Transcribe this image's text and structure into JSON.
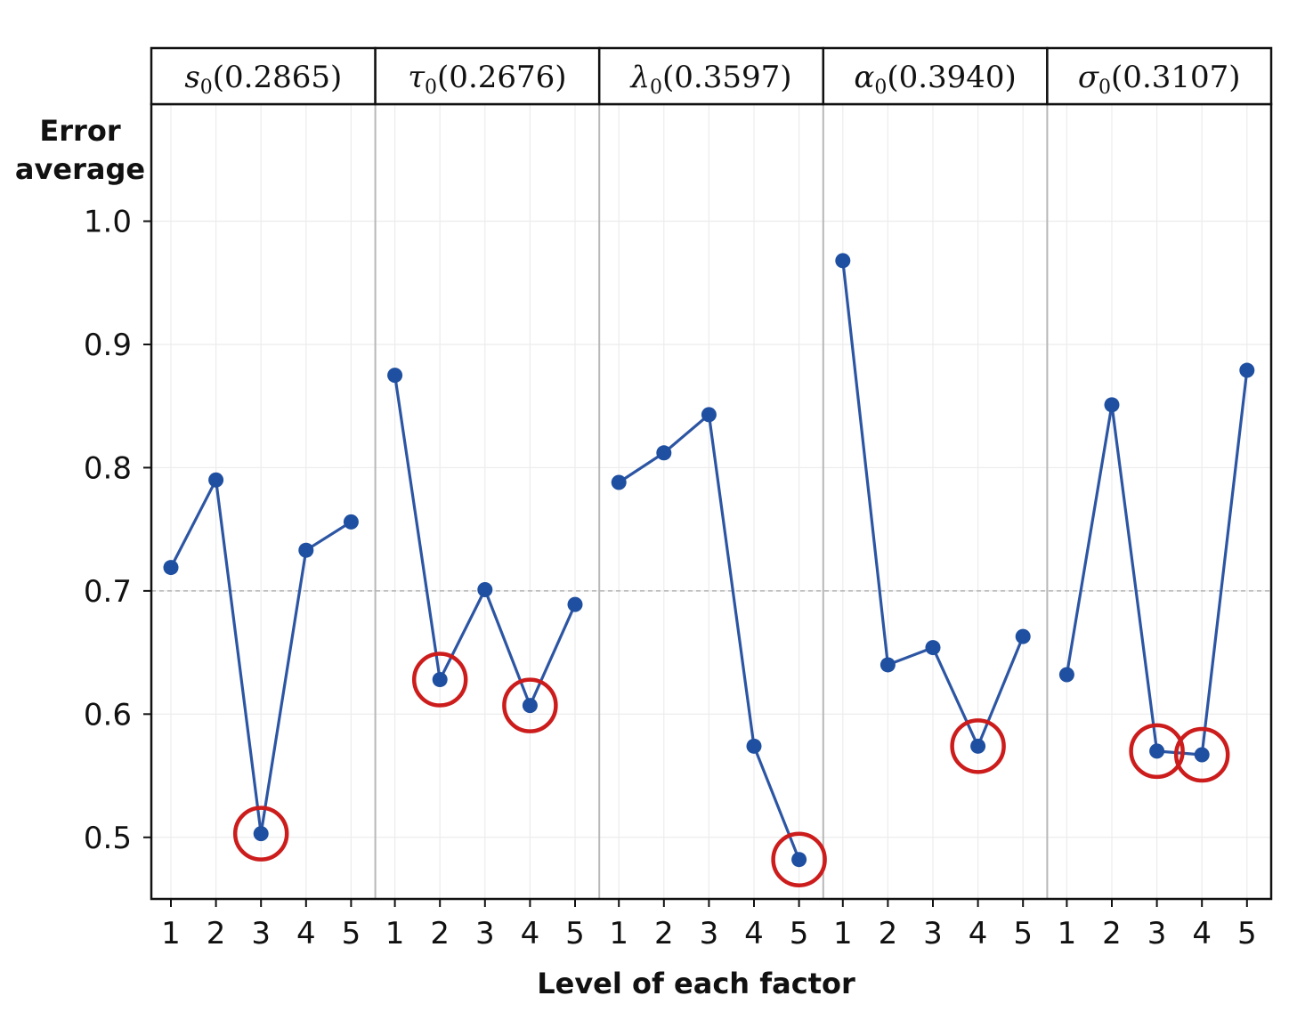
{
  "chart_data": {
    "type": "line",
    "ylabel_lines": [
      "Error",
      "average"
    ],
    "xlabel": "Level of each factor",
    "ylim": [
      0.45,
      1.095
    ],
    "yticks": [
      0.5,
      0.6,
      0.7,
      0.8,
      0.9,
      1.0
    ],
    "ytick_labels": [
      "0.5",
      "0.6",
      "0.7",
      "0.8",
      "0.9",
      "1.0"
    ],
    "reference_line": 0.7,
    "x_levels": [
      "1",
      "2",
      "3",
      "4",
      "5"
    ],
    "line_color": "#2c55a3",
    "marker_color": "#1f4fa0",
    "highlight_color": "#cc1c1c",
    "panels": [
      {
        "symbol": "s",
        "sub": "0",
        "value_text": "(0.2865)",
        "values": [
          0.719,
          0.79,
          0.503,
          0.733,
          0.756
        ],
        "highlight": [
          3
        ]
      },
      {
        "symbol": "τ",
        "sub": "0",
        "value_text": "(0.2676)",
        "values": [
          0.875,
          0.628,
          0.701,
          0.607,
          0.689
        ],
        "highlight": [
          2,
          4
        ]
      },
      {
        "symbol": "λ",
        "sub": "0",
        "value_text": "(0.3597)",
        "values": [
          0.788,
          0.812,
          0.843,
          0.574,
          0.482
        ],
        "highlight": [
          5
        ]
      },
      {
        "symbol": "α",
        "sub": "0",
        "value_text": "(0.3940)",
        "values": [
          0.968,
          0.64,
          0.654,
          0.574,
          0.663
        ],
        "highlight": [
          4
        ]
      },
      {
        "symbol": "σ",
        "sub": "0",
        "value_text": "(0.3107)",
        "values": [
          0.632,
          0.851,
          0.57,
          0.567,
          0.879
        ],
        "highlight": [
          3,
          4
        ]
      }
    ]
  }
}
